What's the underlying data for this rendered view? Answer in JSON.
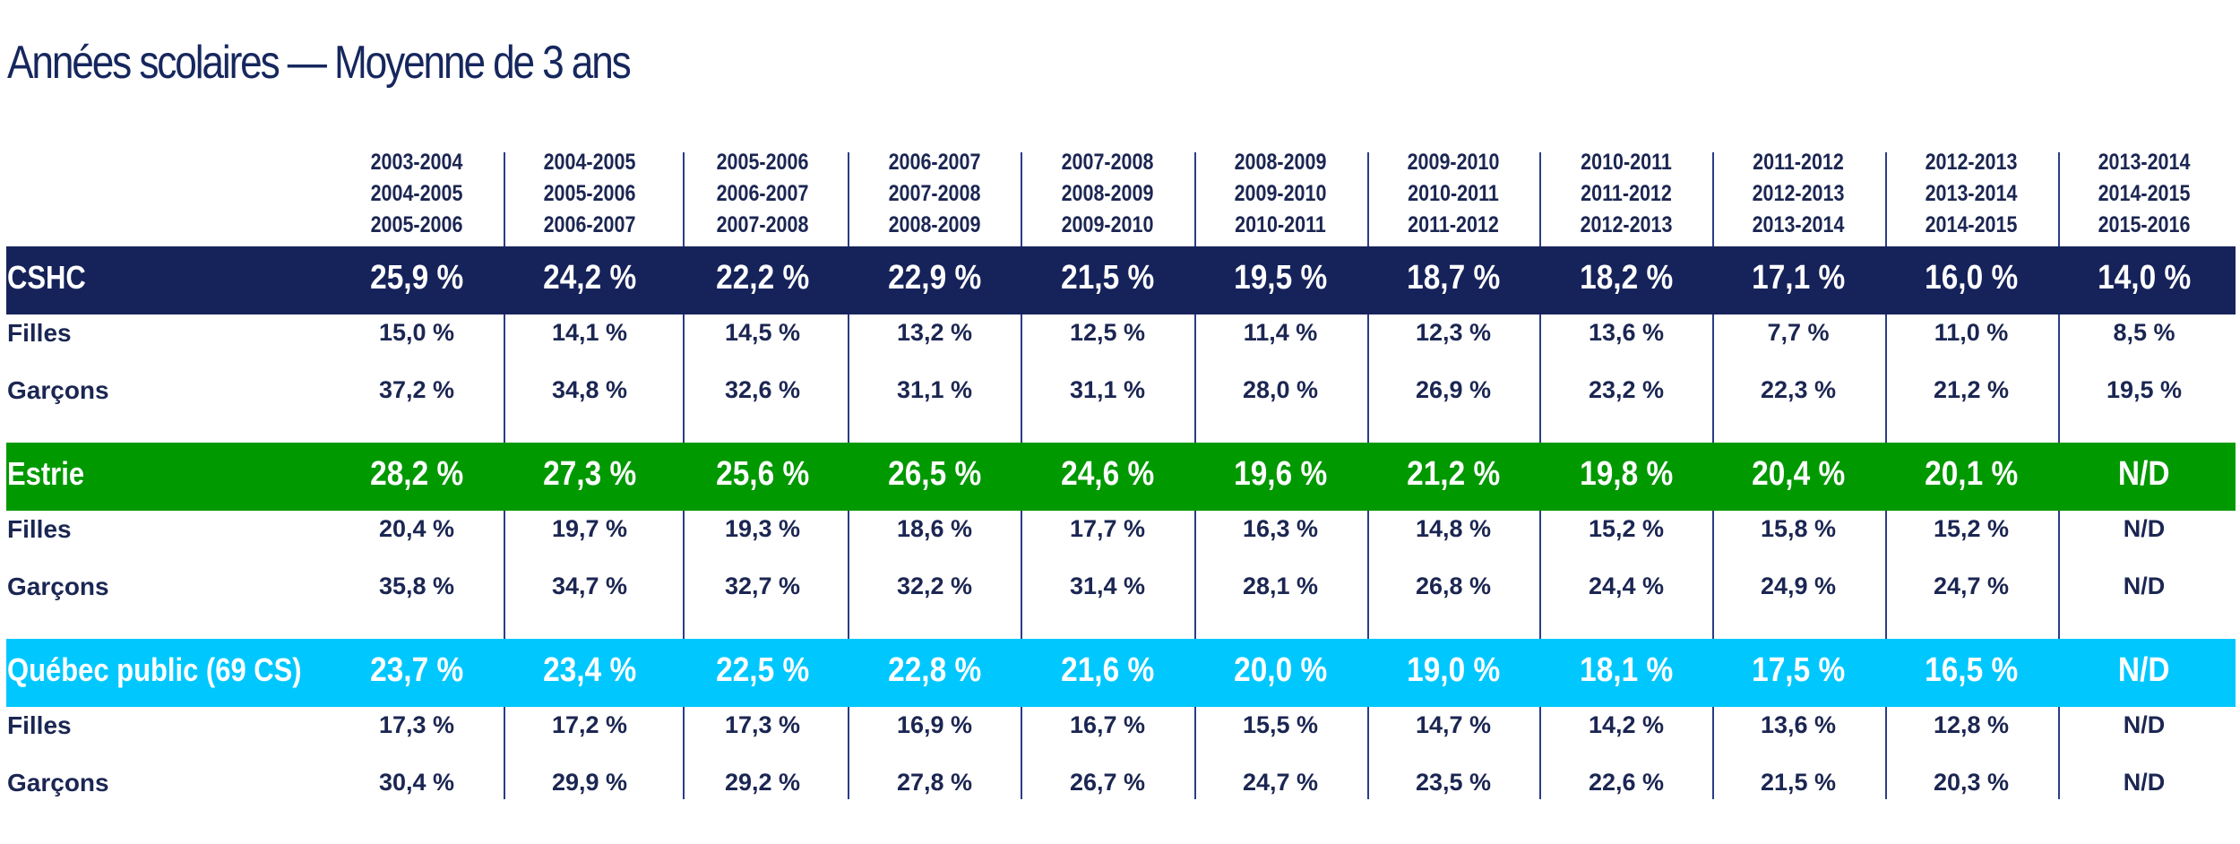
{
  "title": "Années scolaires — Moyenne de 3 ans",
  "colors": {
    "CSHC": "#16235a",
    "Estrie": "#009900",
    "Québec public (69 CS)": "#00c8ff",
    "text": "#1b2652",
    "grid": "#2b3d86"
  },
  "chart_data": {
    "type": "table",
    "title": "Années scolaires — Moyenne de 3 ans",
    "columns": [
      [
        "2003-2004",
        "2004-2005",
        "2005-2006"
      ],
      [
        "2004-2005",
        "2005-2006",
        "2006-2007"
      ],
      [
        "2005-2006",
        "2006-2007",
        "2007-2008"
      ],
      [
        "2006-2007",
        "2007-2008",
        "2008-2009"
      ],
      [
        "2007-2008",
        "2008-2009",
        "2009-2010"
      ],
      [
        "2008-2009",
        "2009-2010",
        "2010-2011"
      ],
      [
        "2009-2010",
        "2010-2011",
        "2011-2012"
      ],
      [
        "2010-2011",
        "2011-2012",
        "2012-2013"
      ],
      [
        "2011-2012",
        "2012-2013",
        "2013-2014"
      ],
      [
        "2012-2013",
        "2013-2014",
        "2014-2015"
      ],
      [
        "2013-2014",
        "2014-2015",
        "2015-2016"
      ]
    ],
    "groups": [
      {
        "name": "CSHC",
        "values": [
          "25,9 %",
          "24,2 %",
          "22,2 %",
          "22,9 %",
          "21,5 %",
          "19,5 %",
          "18,7 %",
          "18,2 %",
          "17,1 %",
          "16,0 %",
          "14,0 %"
        ],
        "subrows": [
          {
            "label": "Filles",
            "values": [
              "15,0 %",
              "14,1 %",
              "14,5 %",
              "13,2 %",
              "12,5 %",
              "11,4 %",
              "12,3 %",
              "13,6 %",
              "7,7 %",
              "11,0 %",
              "8,5 %"
            ]
          },
          {
            "label": "Garçons",
            "values": [
              "37,2 %",
              "34,8 %",
              "32,6 %",
              "31,1 %",
              "31,1 %",
              "28,0 %",
              "26,9 %",
              "23,2 %",
              "22,3 %",
              "21,2 %",
              "19,5 %"
            ]
          }
        ]
      },
      {
        "name": "Estrie",
        "values": [
          "28,2 %",
          "27,3 %",
          "25,6 %",
          "26,5 %",
          "24,6 %",
          "19,6 %",
          "21,2 %",
          "19,8 %",
          "20,4 %",
          "20,1 %",
          "N/D"
        ],
        "subrows": [
          {
            "label": "Filles",
            "values": [
              "20,4 %",
              "19,7 %",
              "19,3 %",
              "18,6 %",
              "17,7 %",
              "16,3 %",
              "14,8 %",
              "15,2 %",
              "15,8 %",
              "15,2 %",
              "N/D"
            ]
          },
          {
            "label": "Garçons",
            "values": [
              "35,8 %",
              "34,7 %",
              "32,7 %",
              "32,2 %",
              "31,4 %",
              "28,1 %",
              "26,8 %",
              "24,4 %",
              "24,9 %",
              "24,7 %",
              "N/D"
            ]
          }
        ]
      },
      {
        "name": "Québec public (69 CS)",
        "values": [
          "23,7 %",
          "23,4 %",
          "22,5 %",
          "22,8 %",
          "21,6 %",
          "20,0 %",
          "19,0 %",
          "18,1 %",
          "17,5 %",
          "16,5 %",
          "N/D"
        ],
        "subrows": [
          {
            "label": "Filles",
            "values": [
              "17,3 %",
              "17,2 %",
              "17,3 %",
              "16,9 %",
              "16,7 %",
              "15,5 %",
              "14,7 %",
              "14,2 %",
              "13,6 %",
              "12,8 %",
              "N/D"
            ]
          },
          {
            "label": "Garçons",
            "values": [
              "30,4 %",
              "29,9 %",
              "29,2 %",
              "27,8 %",
              "26,7 %",
              "24,7 %",
              "23,5 %",
              "22,6 %",
              "21,5 %",
              "20,3 %",
              "N/D"
            ]
          }
        ]
      }
    ]
  }
}
